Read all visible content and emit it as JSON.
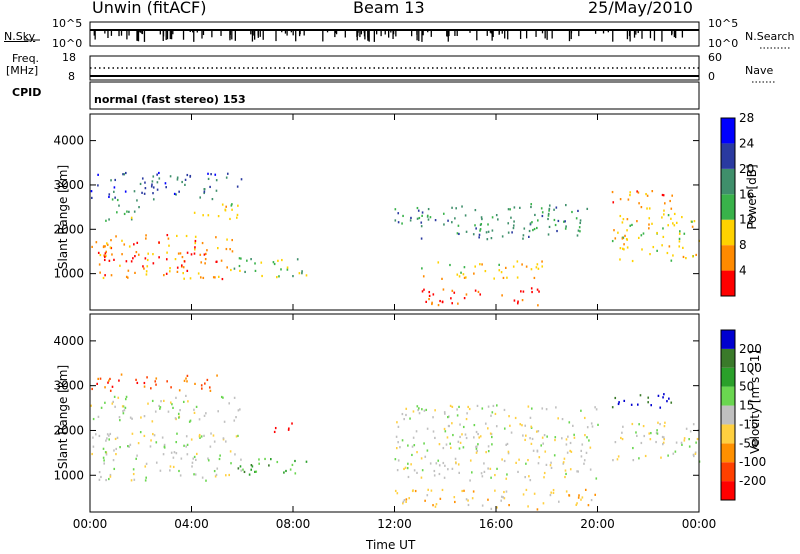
{
  "header": {
    "station": "Unwin (fitACF)",
    "beam": "Beam 13",
    "date": "25/May/2010"
  },
  "sky_panel": {
    "left_label": "N.Sky",
    "left_ticks": [
      "10^5",
      "10^0"
    ],
    "right_label": "N.Search",
    "right_ticks": [
      "10^5",
      "10^0"
    ]
  },
  "freq_panel": {
    "left_label_line1": "Freq.",
    "left_label_line2": "[MHz]",
    "left_ticks": [
      "18",
      "8"
    ],
    "right_label": "Nave",
    "right_ticks": [
      "60",
      "0"
    ]
  },
  "cpid_panel": {
    "label": "CPID",
    "mode": "normal (fast stereo) 153"
  },
  "chart_data": [
    {
      "type": "heatmap",
      "title": "Power",
      "ylabel": "Slant Range [km]",
      "xlabel": "Time UT",
      "x_ticks": [
        "00:00",
        "04:00",
        "08:00",
        "12:00",
        "16:00",
        "20:00",
        "00:00"
      ],
      "y_ticks": [
        1000,
        2000,
        3000,
        4000
      ],
      "ylim": [
        180,
        4600
      ],
      "xlim_hours": [
        0,
        24
      ],
      "colorbar": {
        "label": "Power [dB]",
        "ticks": [
          "4",
          "8",
          "12",
          "16",
          "20",
          "24",
          "28"
        ],
        "colors": [
          "#0000ff",
          "#2a3aa0",
          "#3f8f6b",
          "#39b24a",
          "#ffd200",
          "#ff8a00",
          "#ff0000"
        ]
      },
      "regions": [
        {
          "t": [
            0.0,
            5.6
          ],
          "r": [
            900,
            1900
          ],
          "level": 5
        },
        {
          "t": [
            0.0,
            5.0
          ],
          "r": [
            1300,
            1500
          ],
          "level": 6
        },
        {
          "t": [
            0.5,
            2.0
          ],
          "r": [
            2200,
            2700
          ],
          "level": 3
        },
        {
          "t": [
            4.0,
            6.0
          ],
          "r": [
            2200,
            2600
          ],
          "level": 4
        },
        {
          "t": [
            0.0,
            6.0
          ],
          "r": [
            2700,
            3300
          ],
          "level": 1
        },
        {
          "t": [
            5.5,
            8.5
          ],
          "r": [
            900,
            1400
          ],
          "level": 3
        },
        {
          "t": [
            12.0,
            20.0
          ],
          "r": [
            1800,
            2600
          ],
          "level": 2
        },
        {
          "t": [
            13.0,
            18.0
          ],
          "r": [
            900,
            1300
          ],
          "level": 4
        },
        {
          "t": [
            13.0,
            18.0
          ],
          "r": [
            300,
            700
          ],
          "level": 6
        },
        {
          "t": [
            20.5,
            24.0
          ],
          "r": [
            1300,
            2500
          ],
          "level": 4
        },
        {
          "t": [
            20.5,
            23.0
          ],
          "r": [
            2500,
            2900
          ],
          "level": 5
        }
      ]
    },
    {
      "type": "heatmap",
      "title": "Velocity",
      "ylabel": "Slant Range [km]",
      "xlabel": "Time UT",
      "x_ticks": [
        "00:00",
        "04:00",
        "08:00",
        "12:00",
        "16:00",
        "20:00",
        "00:00"
      ],
      "y_ticks": [
        1000,
        2000,
        3000,
        4000
      ],
      "ylim": [
        180,
        4600
      ],
      "xlim_hours": [
        0,
        24
      ],
      "colorbar": {
        "label": "Velocity [m s^-1]",
        "ticks": [
          "200",
          "100",
          "50",
          "15",
          "-15",
          "-50",
          "-100",
          "-200"
        ],
        "colors": [
          "#0000d0",
          "#3a7a2a",
          "#2aa02a",
          "#6ad650",
          "#c0c0c0",
          "#ffd040",
          "#ff9000",
          "#ff4000",
          "#ff0000"
        ]
      },
      "regions": [
        {
          "t": [
            0.0,
            6.0
          ],
          "r": [
            900,
            2000
          ],
          "level": 4
        },
        {
          "t": [
            0.0,
            6.0
          ],
          "r": [
            2200,
            2800
          ],
          "level": 4
        },
        {
          "t": [
            0.0,
            5.0
          ],
          "r": [
            2900,
            3300
          ],
          "level": 7
        },
        {
          "t": [
            5.5,
            8.5
          ],
          "r": [
            1000,
            1400
          ],
          "level": 2
        },
        {
          "t": [
            7.0,
            8.0
          ],
          "r": [
            1900,
            2200
          ],
          "level": 8
        },
        {
          "t": [
            12.0,
            20.0
          ],
          "r": [
            900,
            2600
          ],
          "level": 4
        },
        {
          "t": [
            12.0,
            20.0
          ],
          "r": [
            250,
            700
          ],
          "level": 5
        },
        {
          "t": [
            20.5,
            23.0
          ],
          "r": [
            2500,
            2900
          ],
          "level": 0
        },
        {
          "t": [
            20.5,
            24.0
          ],
          "r": [
            1300,
            2200
          ],
          "level": 4
        }
      ]
    }
  ]
}
